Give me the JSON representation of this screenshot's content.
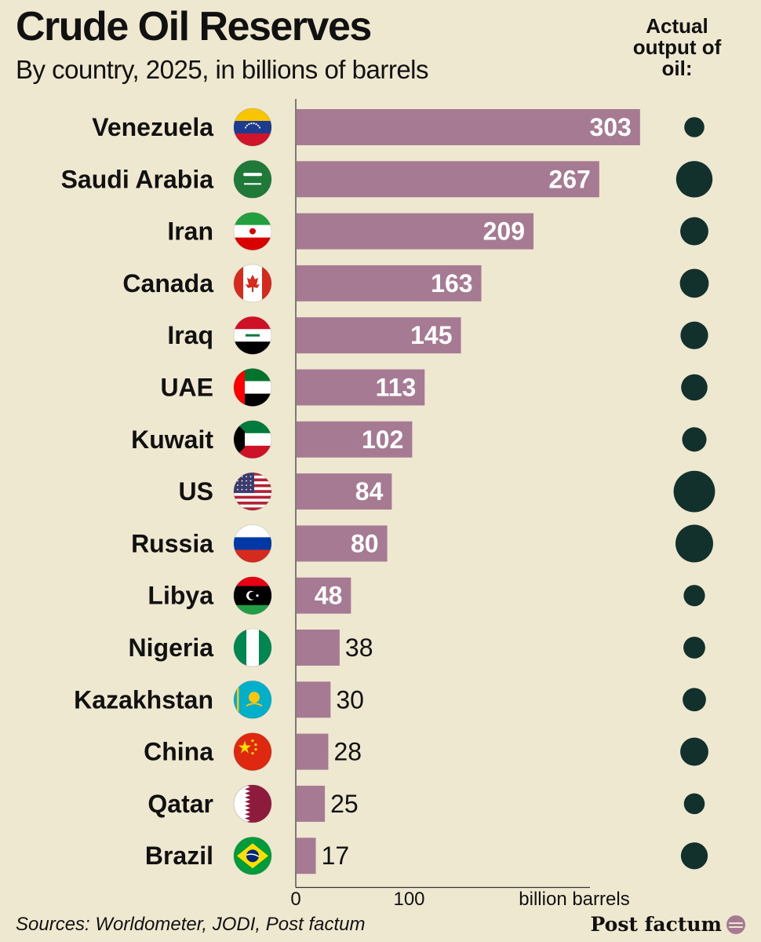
{
  "title": "Crude Oil Reserves",
  "subtitle": "By country, 2025, in billions of barrels",
  "output_header": "Actual output of oil:",
  "source": "Sources: Worldometer, JODI, Post factum",
  "brand": "Post factum",
  "colors": {
    "background": "#efe8d0",
    "bar": "#a77a93",
    "dot": "#12302c",
    "text": "#111111"
  },
  "chart_data": {
    "type": "bar",
    "orientation": "horizontal",
    "title": "Crude Oil Reserves",
    "subtitle": "By country, 2025, in billions of barrels",
    "xlabel": "billion barrels",
    "xlim": [
      0,
      300
    ],
    "x_ticks": [
      0,
      100
    ],
    "categories": [
      "Venezuela",
      "Saudi Arabia",
      "Iran",
      "Canada",
      "Iraq",
      "UAE",
      "Kuwait",
      "US",
      "Russia",
      "Libya",
      "Nigeria",
      "Kazakhstan",
      "China",
      "Qatar",
      "Brazil"
    ],
    "values": [
      303,
      267,
      209,
      163,
      145,
      113,
      102,
      84,
      80,
      48,
      38,
      30,
      28,
      25,
      17
    ],
    "flags": [
      "venezuela-flag",
      "saudi-arabia-flag",
      "iran-flag",
      "canada-flag",
      "iraq-flag",
      "uae-flag",
      "kuwait-flag",
      "us-flag",
      "russia-flag",
      "libya-flag",
      "nigeria-flag",
      "kazakhstan-flag",
      "china-flag",
      "qatar-flag",
      "brazil-flag"
    ],
    "actual_output_relative": [
      0.3,
      0.95,
      0.62,
      0.65,
      0.6,
      0.55,
      0.47,
      1.15,
      1.0,
      0.35,
      0.37,
      0.43,
      0.62,
      0.33,
      0.57
    ],
    "grid": false
  }
}
